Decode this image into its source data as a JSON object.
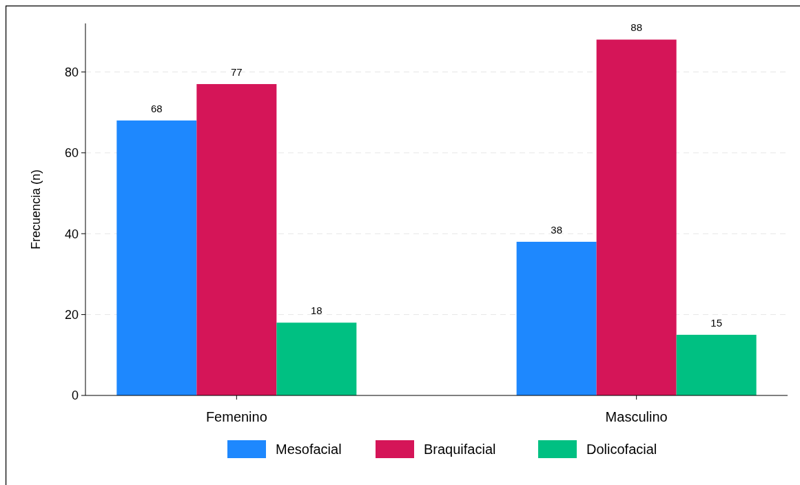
{
  "chart_data": {
    "type": "bar",
    "ylabel": "Frecuencia (n)",
    "categories": [
      "Femenino",
      "Masculino"
    ],
    "series": [
      {
        "name": "Mesofacial",
        "color": "#1e88fe",
        "values": [
          68,
          38
        ]
      },
      {
        "name": "Braquifacial",
        "color": "#d51558",
        "values": [
          77,
          88
        ]
      },
      {
        "name": "Dolicofacial",
        "color": "#00c082",
        "values": [
          18,
          15
        ]
      }
    ],
    "ylim": [
      0,
      92
    ],
    "yticks": [
      0,
      20,
      40,
      60,
      80
    ],
    "grid": "y",
    "legend": "bottom",
    "data_labels": true
  }
}
